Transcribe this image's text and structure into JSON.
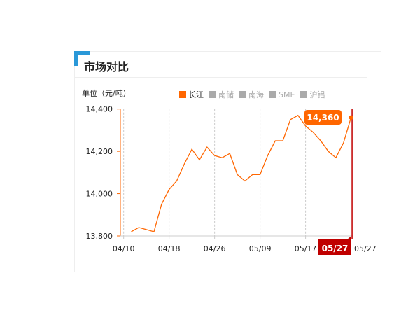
{
  "title": "市场对比",
  "unit_label": "单位（元/吨）",
  "legend": [
    {
      "label": "长江",
      "active": true
    },
    {
      "label": "南储",
      "active": false
    },
    {
      "label": "南海",
      "active": false
    },
    {
      "label": "SME",
      "active": false
    },
    {
      "label": "沪铝",
      "active": false
    }
  ],
  "colors": {
    "line": "#ff6600",
    "accent": "#2a98d8",
    "crosshair": "#c00000"
  },
  "chart_data": {
    "type": "line",
    "series": [
      {
        "name": "长江",
        "values": [
          13820,
          13840,
          13830,
          13820,
          13950,
          14020,
          14060,
          14140,
          14210,
          14160,
          14220,
          14180,
          14170,
          14190,
          14090,
          14060,
          14090,
          14090,
          14180,
          14250,
          14250,
          14350,
          14370,
          14320,
          14290,
          14250,
          14200,
          14170,
          14240,
          14360
        ]
      }
    ],
    "ylim": [
      13800,
      14400
    ],
    "yticks": [
      "13,800",
      "14,000",
      "14,200",
      "14,400"
    ],
    "ytick_values": [
      13800,
      14000,
      14200,
      14400
    ],
    "xticks": [
      {
        "label": "04/10",
        "index": -1
      },
      {
        "label": "04/18",
        "index": 5
      },
      {
        "label": "04/26",
        "index": 11
      },
      {
        "label": "05/09",
        "index": 17
      },
      {
        "label": "05/17",
        "index": 23
      },
      {
        "label": "05/27",
        "index": 29
      }
    ],
    "grid": "vertical dashed",
    "legend_position": "top",
    "tooltip": {
      "value": "14,360",
      "date": "05/27",
      "index": 29
    }
  }
}
